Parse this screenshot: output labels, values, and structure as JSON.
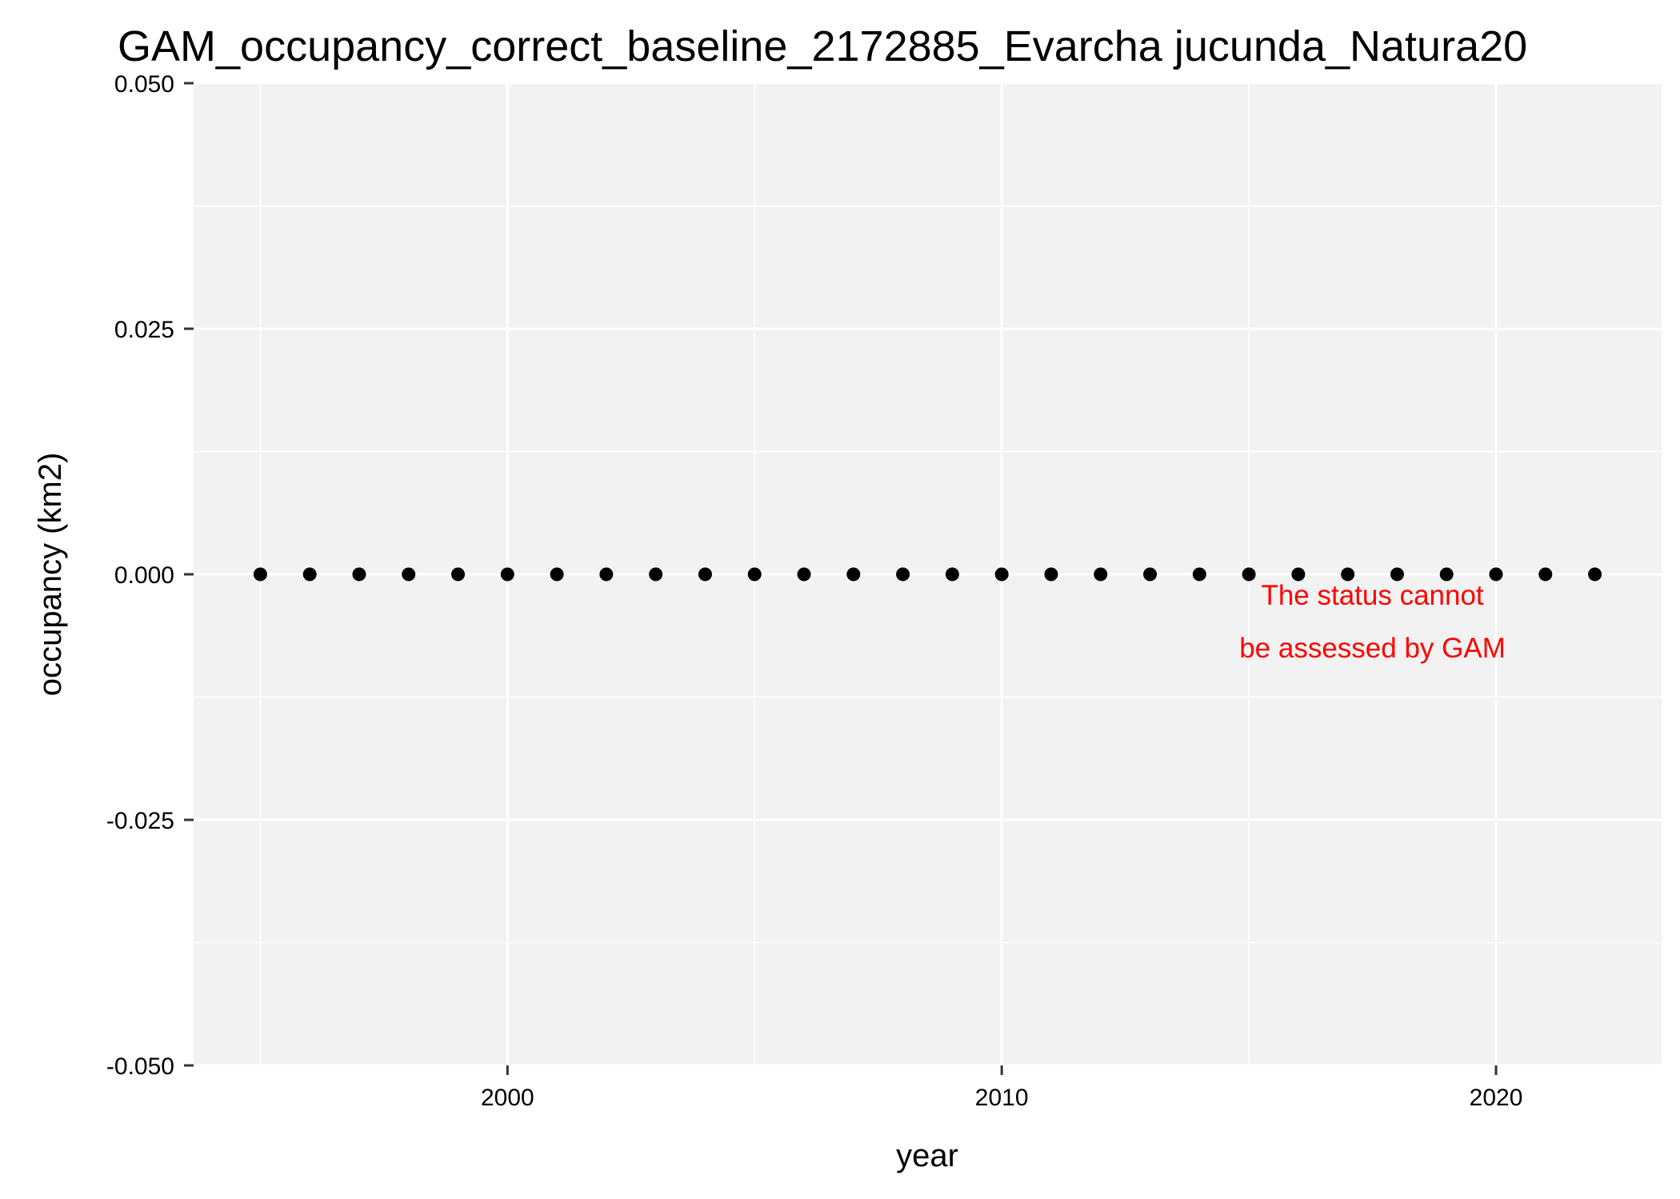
{
  "chart_data": {
    "type": "scatter",
    "title": "GAM_occupancy_correct_baseline_2172885_Evarcha jucunda_Natura20",
    "xlabel": "year",
    "ylabel": "occupancy (km2)",
    "x": [
      1995,
      1996,
      1997,
      1998,
      1999,
      2000,
      2001,
      2002,
      2003,
      2004,
      2005,
      2006,
      2007,
      2008,
      2009,
      2010,
      2011,
      2012,
      2013,
      2014,
      2015,
      2016,
      2017,
      2018,
      2019,
      2020,
      2021,
      2022
    ],
    "y": [
      0,
      0,
      0,
      0,
      0,
      0,
      0,
      0,
      0,
      0,
      0,
      0,
      0,
      0,
      0,
      0,
      0,
      0,
      0,
      0,
      0,
      0,
      0,
      0,
      0,
      0,
      0,
      0
    ],
    "xlim": [
      1993.65,
      2023.35
    ],
    "ylim": [
      -0.05,
      0.05
    ],
    "x_ticks": [
      2000,
      2010,
      2020
    ],
    "x_tick_labels": [
      "2000",
      "2010",
      "2020"
    ],
    "y_ticks": [
      -0.05,
      -0.025,
      0,
      0.025,
      0.05
    ],
    "y_tick_labels": [
      "-0.050",
      "-0.025",
      "0.000",
      "0.025",
      "0.050"
    ],
    "grid": true,
    "panel_color": "#f2f2f2",
    "grid_color": "#ffffff",
    "point_color": "#000000",
    "annotation": {
      "lines": [
        "The status cannot",
        "be assessed by GAM"
      ],
      "x": 2017.5,
      "y": -0.0048,
      "color": "#ff0000"
    }
  }
}
